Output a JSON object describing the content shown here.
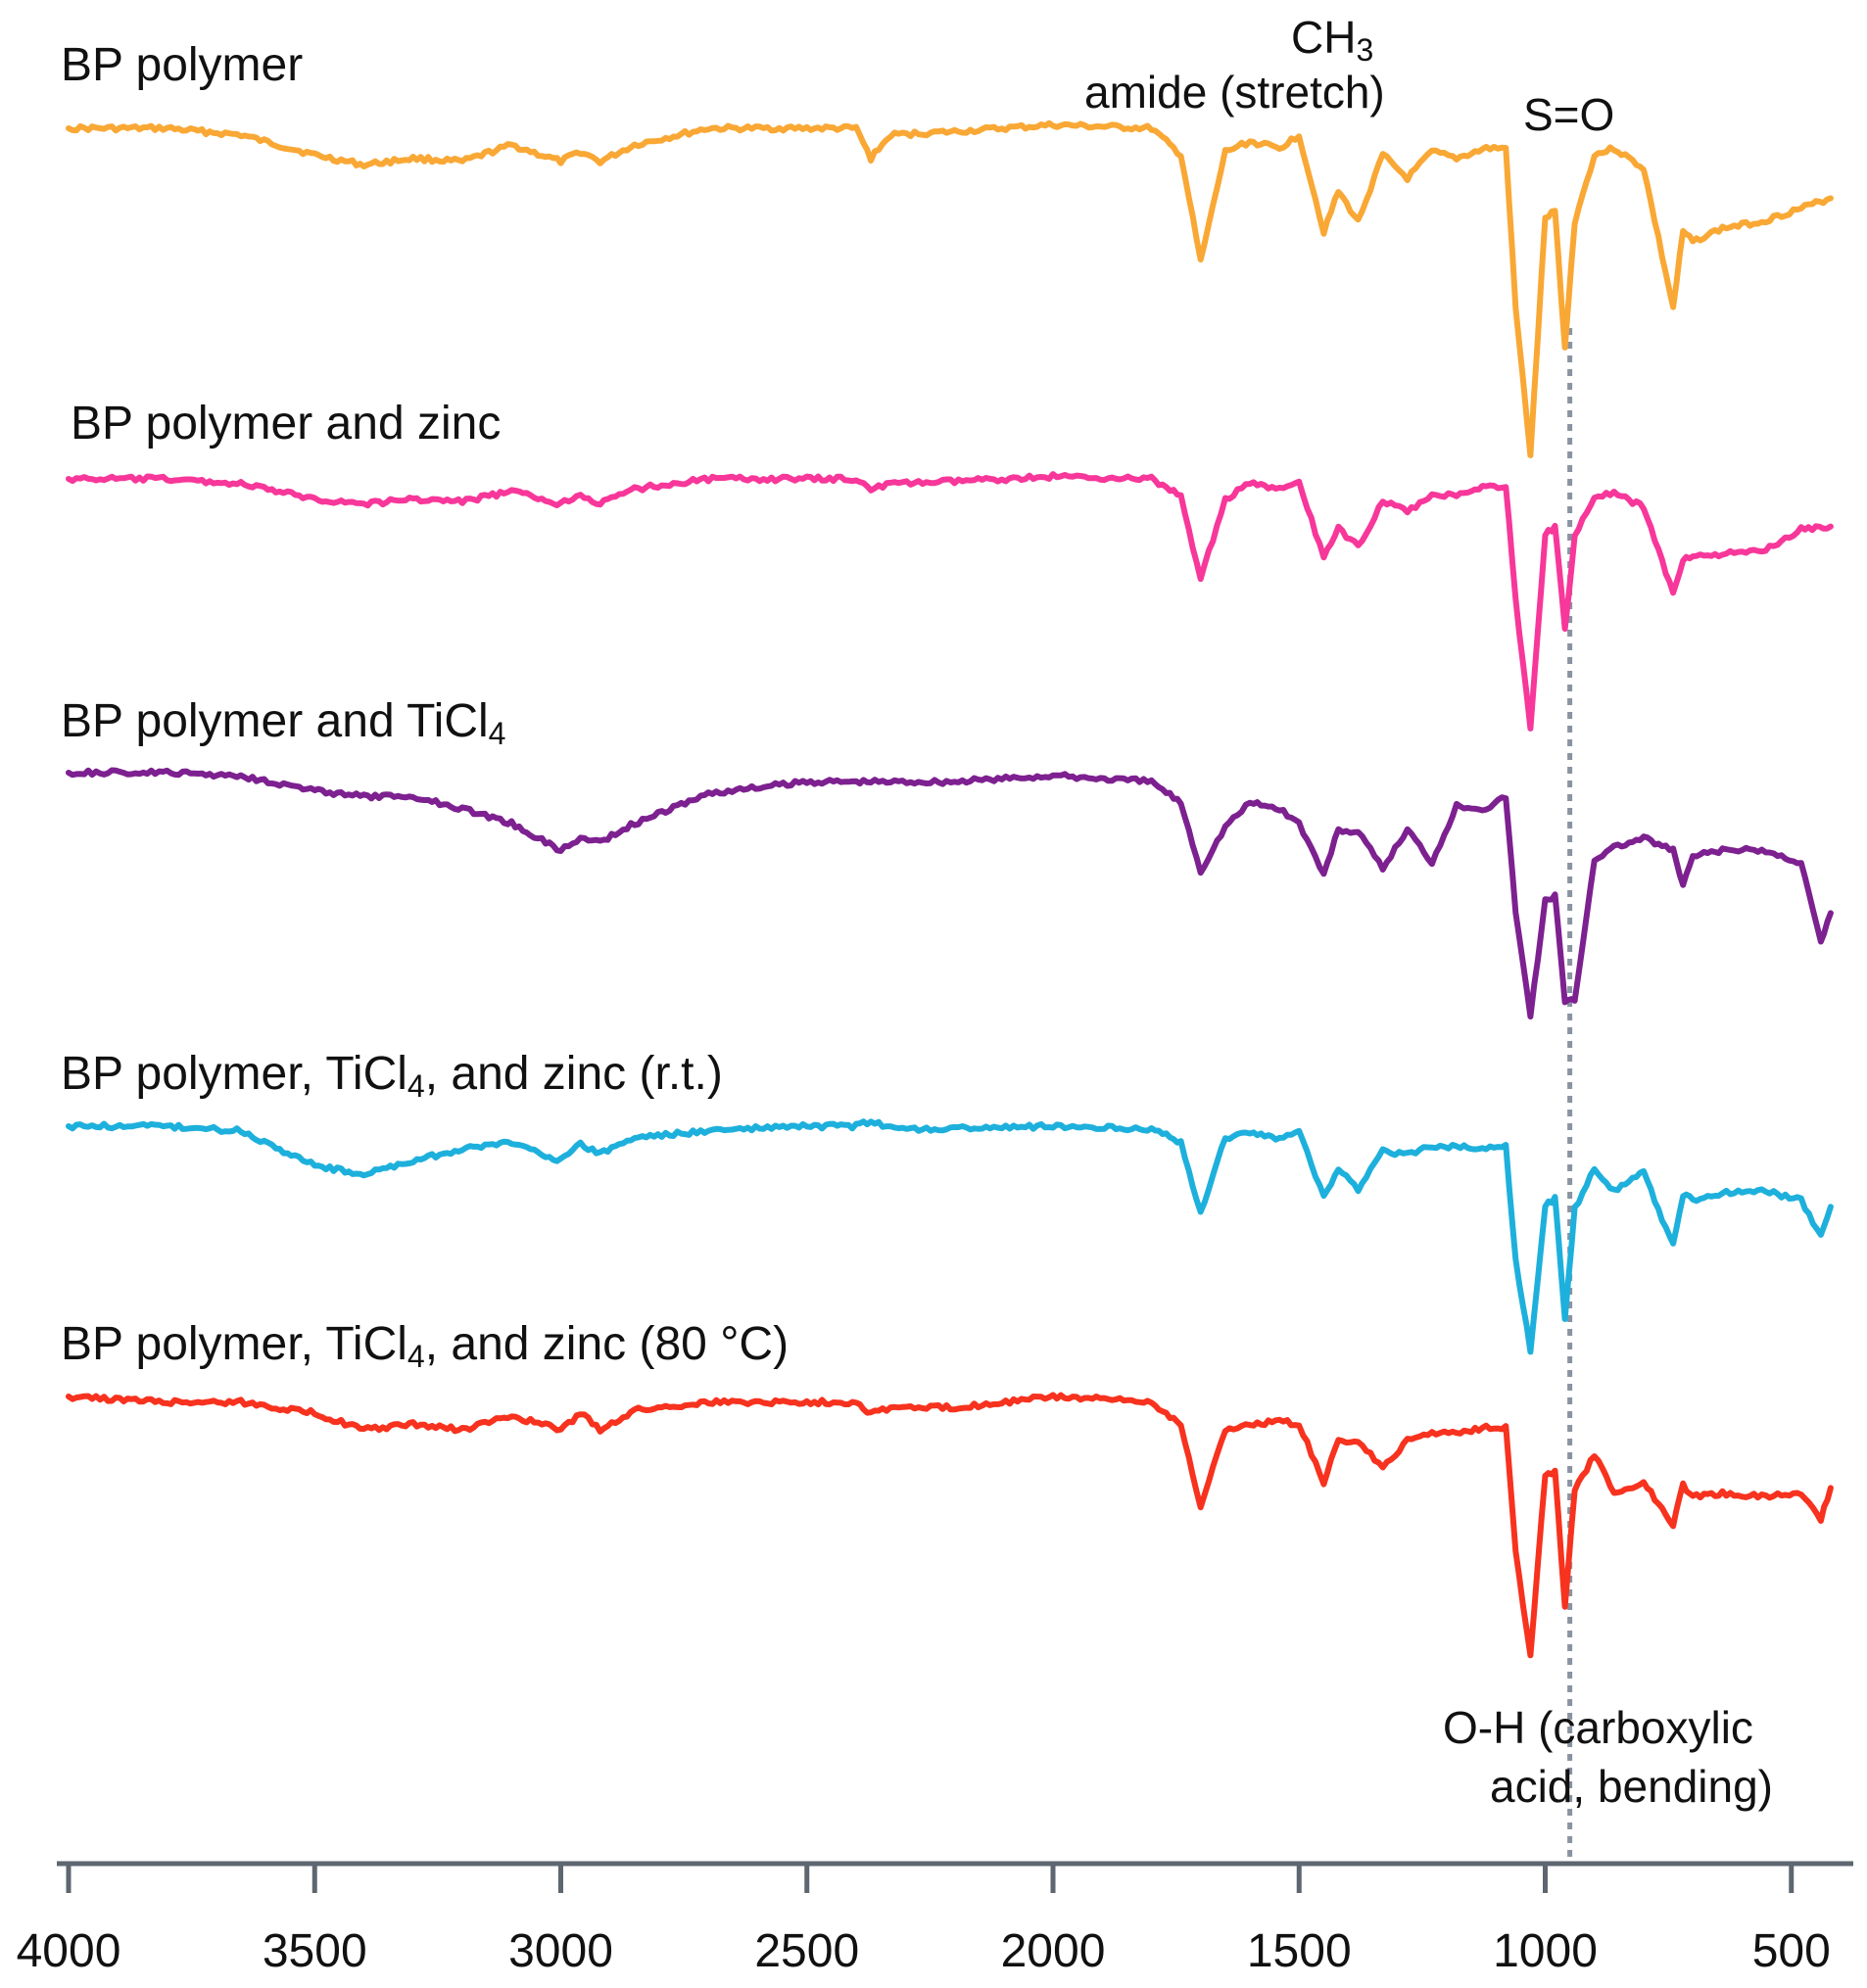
{
  "chart_data": {
    "type": "line",
    "title": "",
    "xlabel": "",
    "ylabel": "",
    "x_reversed": true,
    "xlim": [
      4000,
      420
    ],
    "x_ticks": [
      4000,
      3500,
      3000,
      2500,
      2000,
      1500,
      1000,
      500
    ],
    "x_tick_labels": [
      "4000",
      "3500",
      "3000",
      "2500",
      "2000",
      "1500",
      "1000",
      "500"
    ],
    "y_units": "relative transmittance (stacked, 0 = baseline, 1 = deepest band)",
    "grid": false,
    "legend": "none (series labelled inline above each trace)",
    "series": [
      {
        "name": "BP polymer",
        "label_main": "BP polymer",
        "label_sub": "",
        "label_tail": "",
        "color": "#F9A835",
        "x": [
          4000,
          3800,
          3650,
          3500,
          3400,
          3300,
          3200,
          3100,
          3000,
          2960,
          2920,
          2850,
          2700,
          2500,
          2400,
          2370,
          2330,
          2200,
          2000,
          1800,
          1740,
          1700,
          1650,
          1600,
          1540,
          1500,
          1450,
          1420,
          1380,
          1330,
          1280,
          1230,
          1180,
          1120,
          1080,
          1060,
          1030,
          1000,
          980,
          960,
          940,
          900,
          860,
          800,
          740,
          720,
          700,
          640,
          560,
          480,
          420
        ],
        "y": [
          0.0,
          0.0,
          0.02,
          0.08,
          0.11,
          0.09,
          0.1,
          0.05,
          0.1,
          0.07,
          0.1,
          0.05,
          0.0,
          0.0,
          0.0,
          0.09,
          0.02,
          0.01,
          -0.01,
          0.0,
          0.08,
          0.4,
          0.07,
          0.04,
          0.06,
          0.02,
          0.31,
          0.19,
          0.28,
          0.08,
          0.15,
          0.07,
          0.09,
          0.06,
          0.06,
          0.54,
          0.98,
          0.27,
          0.25,
          0.66,
          0.28,
          0.08,
          0.06,
          0.12,
          0.54,
          0.31,
          0.34,
          0.3,
          0.28,
          0.24,
          0.21
        ]
      },
      {
        "name": "BP polymer and zinc",
        "label_main": "BP polymer and zinc",
        "label_sub": "",
        "label_tail": "",
        "color": "#F7379A",
        "x": [
          4000,
          3800,
          3650,
          3500,
          3400,
          3300,
          3200,
          3100,
          3000,
          2960,
          2920,
          2850,
          2700,
          2500,
          2400,
          2370,
          2330,
          2200,
          2000,
          1800,
          1740,
          1700,
          1650,
          1600,
          1540,
          1500,
          1450,
          1420,
          1380,
          1330,
          1280,
          1230,
          1180,
          1120,
          1080,
          1060,
          1030,
          1000,
          980,
          960,
          940,
          900,
          860,
          800,
          740,
          720,
          700,
          640,
          560,
          480,
          420
        ],
        "y": [
          0.0,
          0.0,
          0.02,
          0.08,
          0.1,
          0.08,
          0.09,
          0.05,
          0.1,
          0.06,
          0.1,
          0.04,
          0.0,
          0.0,
          0.0,
          0.04,
          0.02,
          0.01,
          -0.01,
          0.0,
          0.07,
          0.4,
          0.08,
          0.02,
          0.04,
          0.02,
          0.31,
          0.2,
          0.27,
          0.09,
          0.13,
          0.07,
          0.06,
          0.03,
          0.03,
          0.48,
          1.0,
          0.22,
          0.19,
          0.6,
          0.23,
          0.07,
          0.06,
          0.11,
          0.46,
          0.32,
          0.31,
          0.3,
          0.29,
          0.2,
          0.19
        ]
      },
      {
        "name": "BP polymer and TiCl4",
        "label_main": "BP polymer and TiCl",
        "label_sub": "4",
        "label_tail": "",
        "color": "#7D2090",
        "x": [
          4000,
          3800,
          3650,
          3500,
          3400,
          3300,
          3200,
          3100,
          3000,
          2960,
          2920,
          2850,
          2700,
          2500,
          2400,
          2370,
          2330,
          2200,
          2000,
          1800,
          1740,
          1700,
          1650,
          1600,
          1540,
          1500,
          1450,
          1420,
          1380,
          1330,
          1280,
          1230,
          1180,
          1120,
          1080,
          1060,
          1030,
          1000,
          980,
          960,
          940,
          900,
          860,
          800,
          740,
          720,
          700,
          640,
          560,
          480,
          440,
          420
        ],
        "y": [
          0.0,
          0.0,
          0.01,
          0.06,
          0.08,
          0.08,
          0.12,
          0.17,
          0.26,
          0.22,
          0.23,
          0.17,
          0.07,
          0.03,
          0.03,
          0.03,
          0.03,
          0.03,
          0.01,
          0.03,
          0.1,
          0.33,
          0.18,
          0.1,
          0.12,
          0.17,
          0.34,
          0.19,
          0.2,
          0.32,
          0.19,
          0.3,
          0.11,
          0.12,
          0.08,
          0.47,
          0.81,
          0.43,
          0.41,
          0.77,
          0.76,
          0.29,
          0.25,
          0.22,
          0.26,
          0.38,
          0.28,
          0.26,
          0.26,
          0.3,
          0.57,
          0.47
        ]
      },
      {
        "name": "BP polymer, TiCl4, and zinc (r.t.)",
        "label_main": "BP polymer, TiCl",
        "label_sub": "4",
        "label_tail": ", and zinc (r.t.)",
        "color": "#1EB0DC",
        "x": [
          4000,
          3800,
          3650,
          3500,
          3400,
          3300,
          3200,
          3100,
          3000,
          2960,
          2920,
          2850,
          2700,
          2500,
          2400,
          2370,
          2330,
          2200,
          2000,
          1800,
          1740,
          1700,
          1650,
          1600,
          1540,
          1500,
          1450,
          1420,
          1380,
          1330,
          1280,
          1230,
          1180,
          1120,
          1080,
          1060,
          1030,
          1000,
          980,
          960,
          940,
          900,
          860,
          800,
          740,
          720,
          700,
          640,
          560,
          480,
          440,
          420
        ],
        "y": [
          0.0,
          0.0,
          0.02,
          0.17,
          0.21,
          0.15,
          0.1,
          0.07,
          0.15,
          0.08,
          0.12,
          0.05,
          0.02,
          0.0,
          0.0,
          -0.02,
          0.01,
          0.01,
          0.0,
          0.01,
          0.07,
          0.38,
          0.05,
          0.03,
          0.05,
          0.02,
          0.31,
          0.18,
          0.28,
          0.11,
          0.12,
          0.09,
          0.09,
          0.09,
          0.09,
          0.58,
          0.98,
          0.35,
          0.31,
          0.84,
          0.36,
          0.18,
          0.28,
          0.2,
          0.52,
          0.3,
          0.32,
          0.29,
          0.28,
          0.32,
          0.48,
          0.35
        ]
      },
      {
        "name": "BP polymer, TiCl4, and zinc (80 °C)",
        "label_main": "BP polymer, TiCl",
        "label_sub": "4",
        "label_tail": ", and zinc (80 °C)",
        "color": "#F7321E",
        "x": [
          4000,
          3800,
          3650,
          3500,
          3400,
          3300,
          3200,
          3100,
          3000,
          2960,
          2920,
          2850,
          2700,
          2500,
          2400,
          2370,
          2330,
          2200,
          2000,
          1800,
          1740,
          1700,
          1650,
          1600,
          1540,
          1500,
          1450,
          1420,
          1380,
          1330,
          1280,
          1230,
          1180,
          1120,
          1080,
          1060,
          1030,
          1000,
          980,
          960,
          940,
          900,
          860,
          800,
          740,
          720,
          700,
          640,
          560,
          480,
          440,
          420
        ],
        "y": [
          0.0,
          0.02,
          0.02,
          0.06,
          0.12,
          0.1,
          0.12,
          0.07,
          0.12,
          0.06,
          0.12,
          0.05,
          0.02,
          0.02,
          0.02,
          0.06,
          0.04,
          0.04,
          0.0,
          0.02,
          0.1,
          0.4,
          0.12,
          0.1,
          0.09,
          0.1,
          0.31,
          0.16,
          0.16,
          0.26,
          0.16,
          0.13,
          0.13,
          0.11,
          0.11,
          0.56,
          0.94,
          0.28,
          0.27,
          0.76,
          0.34,
          0.21,
          0.35,
          0.31,
          0.46,
          0.32,
          0.36,
          0.35,
          0.36,
          0.35,
          0.44,
          0.33
        ]
      }
    ],
    "annotations": [
      {
        "id": "ch3",
        "text_main": "CH",
        "text_sub": "3"
      },
      {
        "id": "amide",
        "text": "amide (stretch)"
      },
      {
        "id": "so",
        "text": "S=O"
      },
      {
        "id": "oh",
        "lines": [
          "O-H (carboxylic",
          "acid, bending)"
        ]
      }
    ],
    "reference_line": {
      "x": 950,
      "style": "dotted",
      "color": "#8A93A1"
    }
  }
}
